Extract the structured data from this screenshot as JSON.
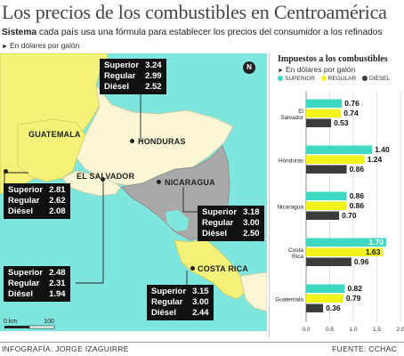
{
  "title": "Los precios de los combustibles en Centroamérica",
  "subtitle": {
    "bold": "Sistema",
    "text": " cada país usa una fórmula para establecer los precios del consumidor a los refinados"
  },
  "unit": "En dólares por galón",
  "map": {
    "countries": [
      {
        "name": "GUATEMALA",
        "prices": [
          {
            "label": "Superior",
            "value": "2.81"
          },
          {
            "label": "Regular",
            "value": "2.62"
          },
          {
            "label": "Diésel",
            "value": "2.08"
          }
        ]
      },
      {
        "name": "EL SALVADOR",
        "prices": [
          {
            "label": "Superior",
            "value": "2.48"
          },
          {
            "label": "Regular",
            "value": "2.31"
          },
          {
            "label": "Diésel",
            "value": "1.94"
          }
        ]
      },
      {
        "name": "HONDURAS",
        "prices": [
          {
            "label": "Superior",
            "value": "3.24"
          },
          {
            "label": "Regular",
            "value": "2.99"
          },
          {
            "label": "Diésel",
            "value": "2.52"
          }
        ]
      },
      {
        "name": "NICARAGUA",
        "prices": [
          {
            "label": "Superior",
            "value": "3.18"
          },
          {
            "label": "Regular",
            "value": "3.00"
          },
          {
            "label": "Diésel",
            "value": "2.50"
          }
        ]
      },
      {
        "name": "COSTA RICA",
        "prices": [
          {
            "label": "Superior",
            "value": "3.15"
          },
          {
            "label": "Regular",
            "value": "3.00"
          },
          {
            "label": "Diésel",
            "value": "2.44"
          }
        ]
      }
    ],
    "compass": "N",
    "scale": {
      "start": "0 km",
      "end": "100"
    }
  },
  "chart_data": {
    "type": "bar",
    "orientation": "horizontal",
    "title": "Impuestos a los combustibles",
    "unit": "En dólares por galón",
    "categories": [
      "El Salvador",
      "Honduras",
      "Nicaragua",
      "Costa Rica",
      "Guatemala"
    ],
    "series": [
      {
        "name": "SUPERIOR",
        "color": "#3fd9c0",
        "values": [
          0.76,
          1.4,
          0.86,
          1.7,
          0.82
        ]
      },
      {
        "name": "REGULAR",
        "color": "#f2f21c",
        "values": [
          0.74,
          1.24,
          0.86,
          1.63,
          0.79
        ]
      },
      {
        "name": "DIÉSEL",
        "color": "#3c3c3c",
        "values": [
          0.53,
          0.86,
          0.7,
          0.96,
          0.36
        ]
      }
    ],
    "value_labels": [
      [
        "0.76",
        "0.74",
        "0.53"
      ],
      [
        "1.40",
        "1.24",
        "0.86"
      ],
      [
        "0.86",
        "0.86",
        "0.70"
      ],
      [
        "1.70",
        "1.63",
        "0.96"
      ],
      [
        "0.82",
        "0.79",
        "0.36"
      ]
    ],
    "xlim": [
      0,
      2.0
    ],
    "xticks": [
      "0.0",
      "0.5",
      "1.0",
      "1.5",
      "2.0"
    ],
    "grid": true,
    "legend": "top"
  },
  "footer": {
    "left": "INFOGRAFÍA: JORGE IZAGUIRRE",
    "right": "FUENTE: CCHAC"
  }
}
